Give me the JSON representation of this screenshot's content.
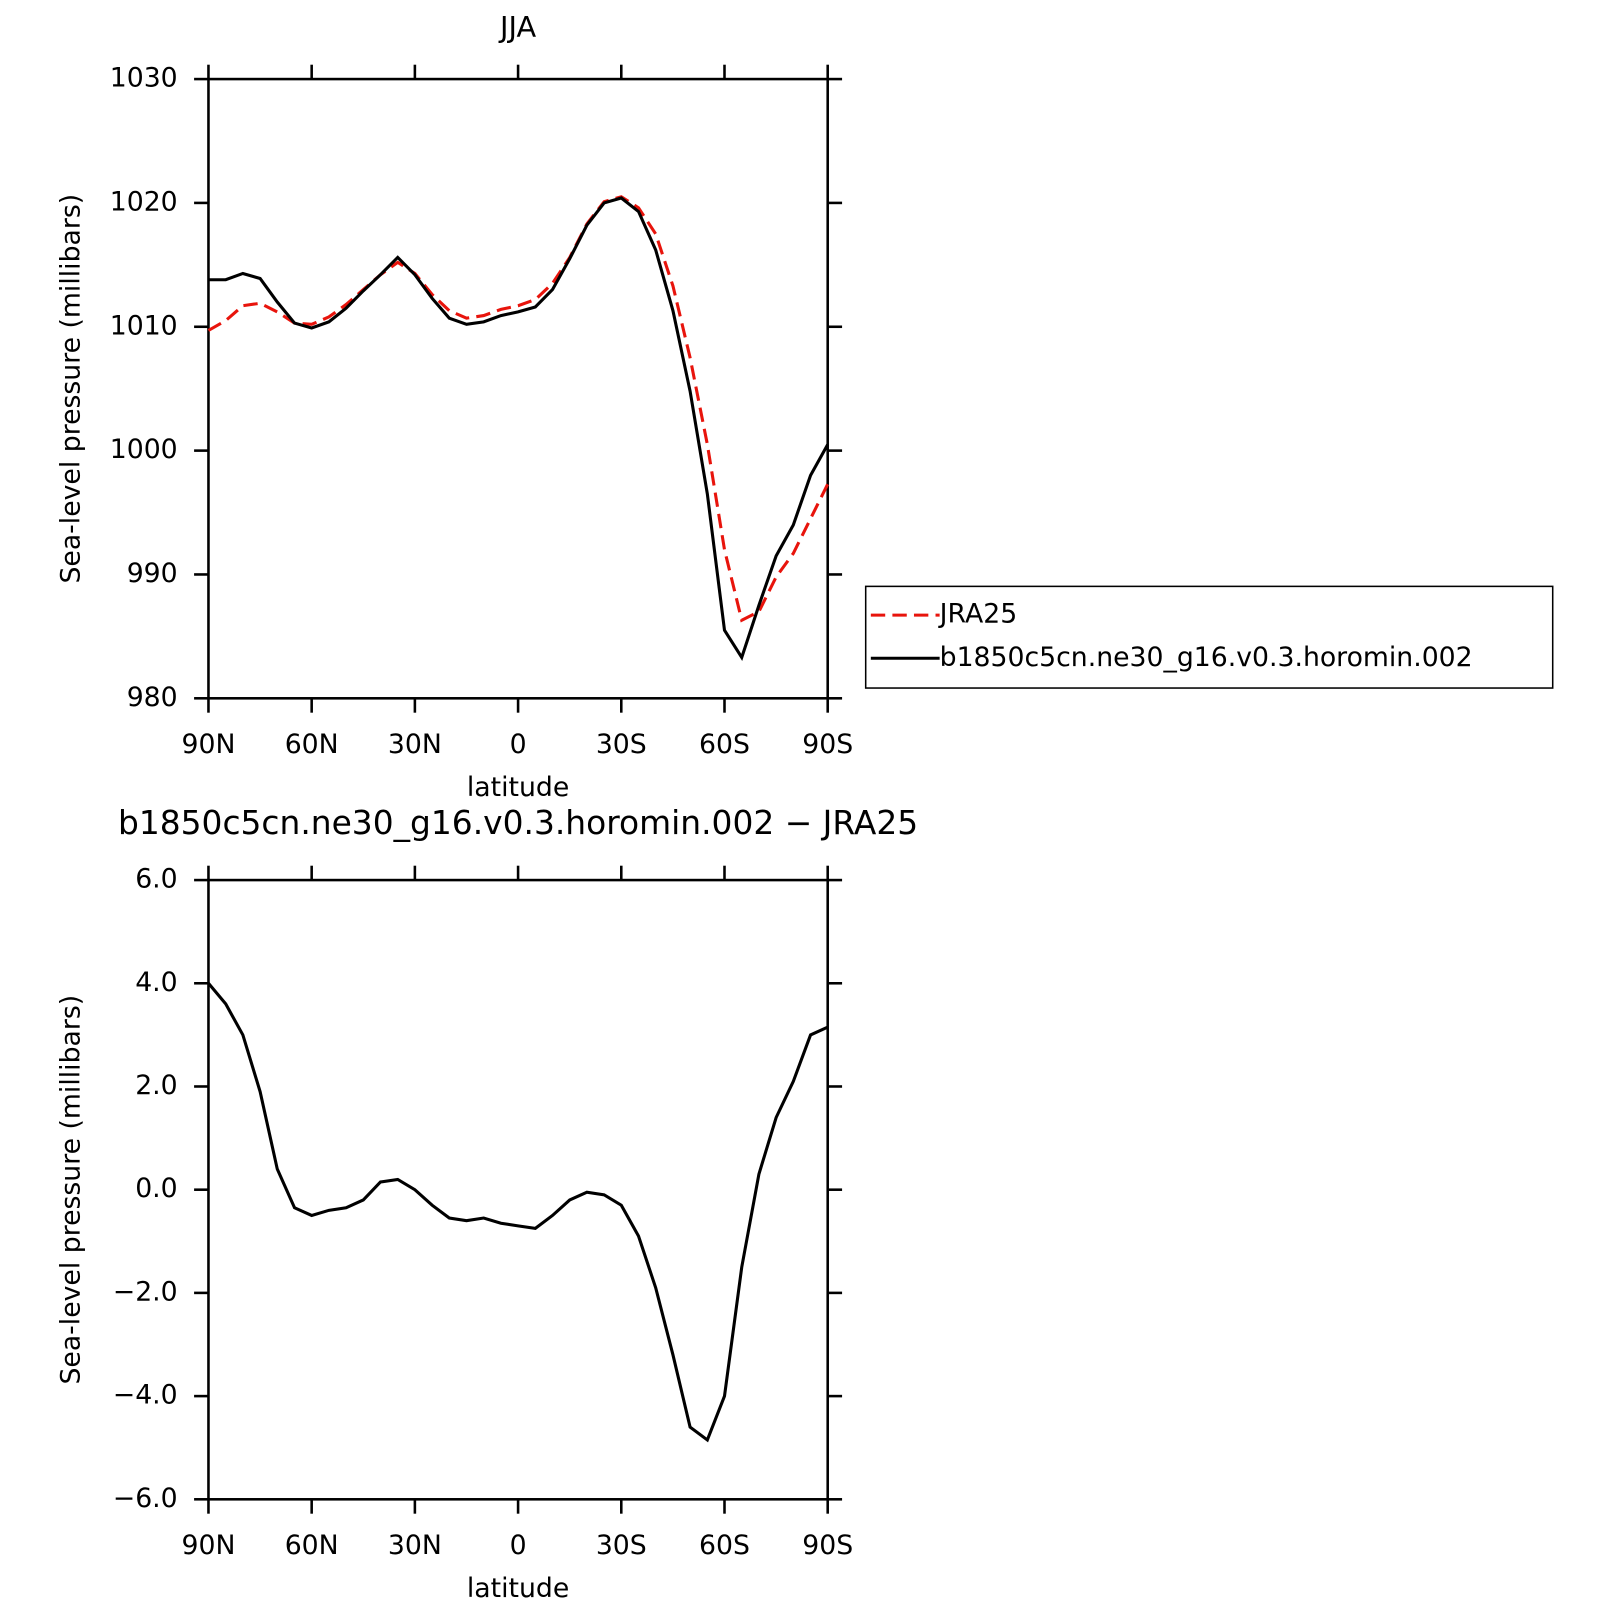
{
  "chart_data": [
    {
      "type": "line",
      "title": "JJA",
      "xlabel": "latitude",
      "ylabel": "Sea-level pressure (millibars)",
      "x": [
        90,
        85,
        80,
        75,
        70,
        65,
        60,
        55,
        50,
        45,
        40,
        35,
        30,
        25,
        20,
        15,
        10,
        5,
        0,
        -5,
        -10,
        -15,
        -20,
        -25,
        -30,
        -35,
        -40,
        -45,
        -50,
        -55,
        -60,
        -65,
        -70,
        -75,
        -80,
        -85,
        -90
      ],
      "xlim": [
        90,
        -90
      ],
      "xticks": [
        {
          "value": 90,
          "label": "90N"
        },
        {
          "value": 60,
          "label": "60N"
        },
        {
          "value": 30,
          "label": "30N"
        },
        0,
        {
          "value": -30,
          "label": "30S"
        },
        {
          "value": -60,
          "label": "60S"
        },
        {
          "value": -90,
          "label": "90S"
        }
      ],
      "ylim": [
        980,
        1030
      ],
      "yticks": [
        980,
        990,
        1000,
        1010,
        1020,
        1030
      ],
      "legend": "right",
      "series": [
        {
          "name": "JRA25",
          "color": "#e8140c",
          "dash": "dashed",
          "values": [
            1009.7,
            1010.5,
            1011.7,
            1011.9,
            1011.2,
            1010.3,
            1010.2,
            1010.8,
            1011.8,
            1013.0,
            1014.2,
            1015.2,
            1014.3,
            1012.6,
            1011.3,
            1010.7,
            1010.9,
            1011.4,
            1011.7,
            1012.2,
            1013.5,
            1015.6,
            1018.3,
            1020.1,
            1020.5,
            1019.6,
            1017.5,
            1013.3,
            1007.5,
            1000.5,
            992.0,
            986.3,
            987.0,
            989.8,
            991.7,
            994.5,
            997.3
          ]
        },
        {
          "name": "b1850c5cn.ne30_g16.v0.3.horomin.002",
          "color": "#000000",
          "dash": "solid",
          "values": [
            1013.8,
            1013.8,
            1014.3,
            1013.9,
            1012.0,
            1010.3,
            1009.9,
            1010.4,
            1011.5,
            1012.9,
            1014.2,
            1015.6,
            1014.2,
            1012.3,
            1010.7,
            1010.2,
            1010.4,
            1010.9,
            1011.2,
            1011.6,
            1013.0,
            1015.5,
            1018.2,
            1020.0,
            1020.4,
            1019.3,
            1016.2,
            1011.3,
            1004.8,
            996.5,
            985.5,
            983.3,
            987.5,
            991.5,
            994.0,
            998.0,
            1000.5
          ]
        }
      ]
    },
    {
      "type": "line",
      "title": "b1850c5cn.ne30_g16.v0.3.horomin.002 − JRA25",
      "xlabel": "latitude",
      "ylabel": "Sea-level pressure (millibars)",
      "x": [
        90,
        85,
        80,
        75,
        70,
        65,
        60,
        55,
        50,
        45,
        40,
        35,
        30,
        25,
        20,
        15,
        10,
        5,
        0,
        -5,
        -10,
        -15,
        -20,
        -25,
        -30,
        -35,
        -40,
        -45,
        -50,
        -55,
        -60,
        -65,
        -70,
        -75,
        -80,
        -85,
        -90
      ],
      "xlim": [
        90,
        -90
      ],
      "xticks": [
        {
          "value": 90,
          "label": "90N"
        },
        {
          "value": 60,
          "label": "60N"
        },
        {
          "value": 30,
          "label": "30N"
        },
        0,
        {
          "value": -30,
          "label": "30S"
        },
        {
          "value": -60,
          "label": "60S"
        },
        {
          "value": -90,
          "label": "90S"
        }
      ],
      "ylim": [
        -6,
        6
      ],
      "yticks": [
        {
          "value": -6,
          "label": "−6.0"
        },
        {
          "value": -4,
          "label": "−4.0"
        },
        {
          "value": -2,
          "label": "−2.0"
        },
        {
          "value": 0,
          "label": "0.0"
        },
        {
          "value": 2,
          "label": "2.0"
        },
        {
          "value": 4,
          "label": "4.0"
        },
        {
          "value": 6,
          "label": "6.0"
        }
      ],
      "color": "#000000",
      "values": [
        4.0,
        3.6,
        3.0,
        1.9,
        0.4,
        -0.35,
        -0.5,
        -0.4,
        -0.35,
        -0.2,
        0.15,
        0.2,
        0.0,
        -0.3,
        -0.55,
        -0.6,
        -0.55,
        -0.65,
        -0.7,
        -0.75,
        -0.5,
        -0.2,
        -0.05,
        -0.1,
        -0.3,
        -0.9,
        -1.9,
        -3.2,
        -4.6,
        -4.85,
        -4.0,
        -1.5,
        0.3,
        1.4,
        2.1,
        3.0,
        3.15
      ]
    }
  ]
}
